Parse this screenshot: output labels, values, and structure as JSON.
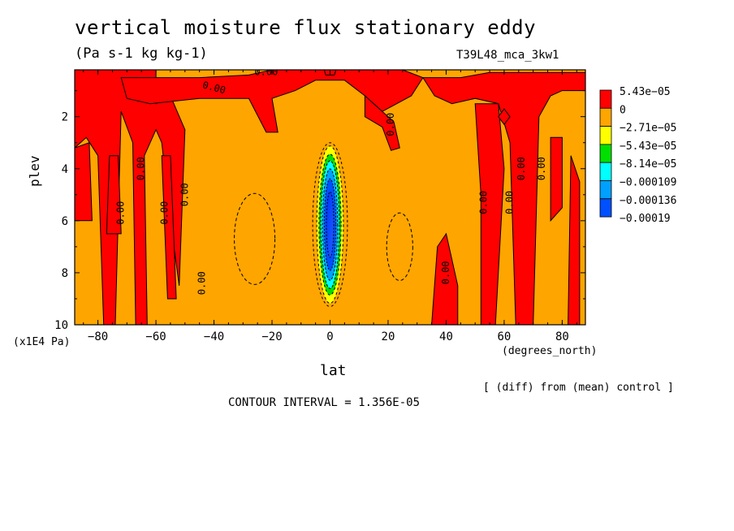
{
  "chart_data": {
    "type": "contour",
    "title": "vertical moisture flux stationary eddy",
    "units": "(Pa s-1 kg kg-1)",
    "run_label": "T39L48_mca_3kw1",
    "xlabel": "lat",
    "x_unit": "(degrees_north)",
    "ylabel": "plev",
    "y_unit": "(x1E4 Pa)",
    "note": "[ (diff) from (mean) control ]",
    "contour_interval": "CONTOUR INTERVAL = 1.356E-05",
    "xlim": [
      -88,
      88
    ],
    "ylim": [
      10,
      0.2
    ],
    "y_inverted": true,
    "x_ticks": [
      -80,
      -60,
      -40,
      -20,
      0,
      20,
      40,
      60,
      80
    ],
    "x_tick_labels": [
      "−80",
      "−60",
      "−40",
      "−20",
      "0",
      "20",
      "40",
      "60",
      "80"
    ],
    "y_ticks": [
      2,
      4,
      6,
      8,
      10
    ],
    "y_tick_labels": [
      "2",
      "4",
      "6",
      "8",
      "10"
    ],
    "background_level_color": "#ffa500",
    "legend": [
      {
        "label": "5.43e−05",
        "color": "#ff0000"
      },
      {
        "label": "0",
        "color": "#ffa500"
      },
      {
        "label": "−2.71e−05",
        "color": "#ffff00"
      },
      {
        "label": "−5.43e−05",
        "color": "#00e000"
      },
      {
        "label": "−8.14e−05",
        "color": "#00ffff"
      },
      {
        "label": "−0.000109",
        "color": "#00a0ff"
      },
      {
        "label": "−0.000136",
        "color": "#0050ff"
      },
      {
        "label": "−0.00019",
        "color": ""
      }
    ],
    "positive_regions": [
      {
        "name": "upper-left band",
        "points": [
          [
            -88,
            0.2
          ],
          [
            -60,
            0.2
          ],
          [
            -60,
            1.5
          ],
          [
            -55,
            1.2
          ],
          [
            -50,
            2.5
          ],
          [
            -52,
            8.5
          ],
          [
            -55,
            6
          ],
          [
            -58,
            3
          ],
          [
            -60,
            2.5
          ],
          [
            -64,
            3.5
          ],
          [
            -63,
            10
          ],
          [
            -67,
            10
          ],
          [
            -68,
            3
          ],
          [
            -72,
            1.8
          ],
          [
            -74,
            10
          ],
          [
            -78,
            10
          ],
          [
            -80,
            3.5
          ],
          [
            -84,
            2.8
          ],
          [
            -88,
            3.2
          ]
        ]
      },
      {
        "name": "column -58",
        "points": [
          [
            -58,
            3.5
          ],
          [
            -55,
            3.5
          ],
          [
            -53,
            9
          ],
          [
            -56,
            9
          ]
        ]
      },
      {
        "name": "column -76",
        "points": [
          [
            -76,
            3.5
          ],
          [
            -73,
            3.5
          ],
          [
            -72,
            6.5
          ],
          [
            -77,
            6.5
          ]
        ]
      },
      {
        "name": "column -85",
        "points": [
          [
            -88,
            3.2
          ],
          [
            -83,
            3.0
          ],
          [
            -82,
            6
          ],
          [
            -88,
            6
          ]
        ]
      },
      {
        "name": "upper-middle arch",
        "points": [
          [
            -72,
            0.5
          ],
          [
            -45,
            0.5
          ],
          [
            -28,
            0.4
          ],
          [
            -20,
            0.2
          ],
          [
            25,
            0.2
          ],
          [
            32,
            0.5
          ],
          [
            28,
            1.2
          ],
          [
            18,
            1.8
          ],
          [
            12,
            1.2
          ],
          [
            5,
            0.6
          ],
          [
            -5,
            0.6
          ],
          [
            -12,
            1.0
          ],
          [
            -20,
            1.3
          ],
          [
            -18,
            2.6
          ],
          [
            -22,
            2.6
          ],
          [
            -28,
            1.3
          ],
          [
            -45,
            1.3
          ],
          [
            -62,
            1.5
          ],
          [
            -70,
            1.3
          ]
        ]
      },
      {
        "name": "top center cap",
        "points": [
          [
            -2,
            0.2
          ],
          [
            2,
            0.2
          ],
          [
            1.5,
            0.4
          ],
          [
            -1.5,
            0.4
          ]
        ]
      },
      {
        "name": "upper-right arch",
        "points": [
          [
            12,
            1.2
          ],
          [
            16,
            1.6
          ],
          [
            22,
            2.2
          ],
          [
            24,
            3.2
          ],
          [
            21,
            3.3
          ],
          [
            18,
            2.4
          ],
          [
            12,
            2.0
          ]
        ]
      },
      {
        "name": "upper-right band",
        "points": [
          [
            32,
            0.5
          ],
          [
            45,
            0.5
          ],
          [
            55,
            0.3
          ],
          [
            88,
            0.3
          ],
          [
            88,
            1.0
          ],
          [
            80,
            1.0
          ],
          [
            76,
            1.2
          ],
          [
            72,
            2.0
          ],
          [
            70,
            10
          ],
          [
            64,
            10
          ],
          [
            62,
            3
          ],
          [
            58,
            1.5
          ],
          [
            50,
            1.3
          ],
          [
            42,
            1.5
          ],
          [
            36,
            1.2
          ]
        ]
      },
      {
        "name": "column 55",
        "points": [
          [
            50,
            1.5
          ],
          [
            58,
            1.5
          ],
          [
            60,
            4
          ],
          [
            57,
            10
          ],
          [
            52,
            10
          ],
          [
            52,
            5
          ]
        ]
      },
      {
        "name": "column 40",
        "points": [
          [
            37,
            7
          ],
          [
            40,
            6.5
          ],
          [
            44,
            8.5
          ],
          [
            44,
            10
          ],
          [
            35,
            10
          ]
        ]
      },
      {
        "name": "column 78",
        "points": [
          [
            76,
            2.8
          ],
          [
            80,
            2.8
          ],
          [
            80,
            5.5
          ],
          [
            76,
            6
          ]
        ]
      },
      {
        "name": "column 84",
        "points": [
          [
            83,
            3.5
          ],
          [
            86,
            4.5
          ],
          [
            86,
            10
          ],
          [
            82,
            10
          ]
        ]
      },
      {
        "name": "diamond 60",
        "points": [
          [
            60,
            1.7
          ],
          [
            62,
            2.0
          ],
          [
            60,
            2.3
          ],
          [
            58,
            2.0
          ]
        ]
      }
    ],
    "negative_center": {
      "lat": 0,
      "plev_top": 3.0,
      "plev_bottom": 9.3,
      "min_value": -0.00019
    },
    "zero_contour_labels": [
      {
        "text": "0.00",
        "lat": -40,
        "plev": 0.9,
        "angle": 15
      },
      {
        "text": "0.00",
        "lat": -22,
        "plev": 0.3,
        "angle": 0
      },
      {
        "text": "0.00",
        "lat": 21,
        "plev": 2.3,
        "angle": -90
      },
      {
        "text": "0.00",
        "lat": -65,
        "plev": 4.0,
        "angle": -90
      },
      {
        "text": "0.00",
        "lat": -50,
        "plev": 5.0,
        "angle": -90
      },
      {
        "text": "0.00",
        "lat": -72,
        "plev": 5.7,
        "angle": -90
      },
      {
        "text": "0.00",
        "lat": -57,
        "plev": 5.7,
        "angle": -90
      },
      {
        "text": "0.00",
        "lat": -44,
        "plev": 8.4,
        "angle": -90
      },
      {
        "text": "0.00",
        "lat": 53,
        "plev": 5.3,
        "angle": -90
      },
      {
        "text": "0.00",
        "lat": 62,
        "plev": 5.3,
        "angle": -90
      },
      {
        "text": "0.00",
        "lat": 66,
        "plev": 4.0,
        "angle": -90
      },
      {
        "text": "0.00",
        "lat": 73,
        "plev": 4.0,
        "angle": -90
      },
      {
        "text": "0.00",
        "lat": 40,
        "plev": 8.0,
        "angle": -90
      }
    ]
  }
}
